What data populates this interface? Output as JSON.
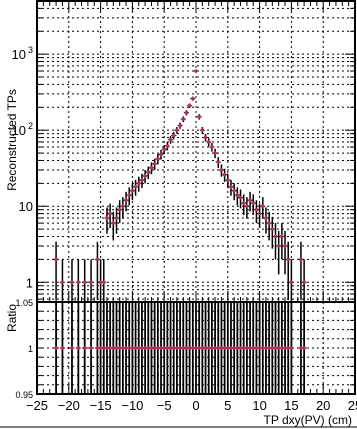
{
  "chart_data": [
    {
      "type": "scatter",
      "title": "",
      "ylabel": "Reconstructed TPs",
      "xlabel": "",
      "y_scale": "log",
      "ylim": [
        0.55,
        5000
      ],
      "xlim": [
        -25,
        25
      ],
      "grid": true,
      "y_tick_labels": [
        "1",
        "10",
        "10",
        "10"
      ],
      "y_tick_exponents": [
        "",
        "",
        "2",
        "3"
      ],
      "series": [
        {
          "color": "#b03060",
          "x": [
            -22,
            -21,
            -19.5,
            -18.5,
            -17.5,
            -16.5,
            -15.5,
            -15,
            -14.5,
            -14,
            -13.5,
            -13,
            -12.5,
            -12,
            -11.5,
            -11,
            -10.5,
            -10,
            -9.5,
            -9,
            -8.5,
            -8,
            -7.5,
            -7,
            -6.5,
            -6,
            -5.5,
            -5,
            -4.5,
            -4,
            -3.5,
            -3,
            -2.5,
            -2,
            -1.5,
            -1,
            -0.5,
            0,
            0.5,
            1,
            1.5,
            2,
            2.5,
            3,
            3.5,
            4,
            4.5,
            5,
            5.5,
            6,
            6.5,
            7,
            7.5,
            8,
            8.5,
            9,
            9.5,
            10,
            10.5,
            11,
            11.5,
            12,
            12.5,
            13,
            13.5,
            14,
            14.5,
            15,
            16.5,
            17
          ],
          "y": [
            2,
            1,
            1,
            1,
            1,
            1,
            2,
            1,
            1,
            7,
            8,
            6,
            7,
            9,
            10,
            12,
            14,
            16,
            18,
            20,
            22,
            25,
            28,
            32,
            36,
            42,
            48,
            56,
            62,
            75,
            85,
            100,
            115,
            140,
            170,
            210,
            260,
            600,
            150,
            100,
            80,
            70,
            60,
            50,
            38,
            30,
            26,
            22,
            18,
            16,
            14,
            13,
            11,
            10,
            12,
            11,
            9,
            8,
            10,
            7,
            6,
            5,
            4,
            3,
            4,
            3,
            2,
            1,
            2,
            1
          ]
        }
      ]
    },
    {
      "type": "scatter",
      "title": "",
      "ylabel": "Ratio",
      "xlabel": "TP dxy(PV) (cm)",
      "ylim": [
        0.95,
        1.05
      ],
      "xlim": [
        -25,
        25
      ],
      "grid": true,
      "y_tick_labels": [
        "0.95",
        "1",
        "1.05"
      ],
      "x_tick_labels": [
        "−25",
        "−20",
        "−15",
        "−10",
        "−5",
        "0",
        "5",
        "10",
        "15",
        "20",
        "25"
      ],
      "series": [
        {
          "color": "#b03060",
          "x": [
            -22,
            -21,
            -19.5,
            -18.5,
            -17.5,
            -16.5,
            -15.5,
            -15,
            -14.5,
            -14,
            -13.5,
            -13,
            -12.5,
            -12,
            -11.5,
            -11,
            -10.5,
            -10,
            -9.5,
            -9,
            -8.5,
            -8,
            -7.5,
            -7,
            -6.5,
            -6,
            -5.5,
            -5,
            -4.5,
            -4,
            -3.5,
            -3,
            -2.5,
            -2,
            -1.5,
            -1,
            -0.5,
            0,
            0.5,
            1,
            1.5,
            2,
            2.5,
            3,
            3.5,
            4,
            4.5,
            5,
            5.5,
            6,
            6.5,
            7,
            7.5,
            8,
            8.5,
            9,
            9.5,
            10,
            10.5,
            11,
            11.5,
            12,
            12.5,
            13,
            13.5,
            14,
            14.5,
            15,
            16.5,
            17
          ],
          "y": [
            1,
            1,
            1,
            1,
            1,
            1,
            1,
            1,
            1,
            1,
            1,
            1,
            1,
            1,
            1,
            1,
            1,
            1,
            1,
            1,
            1,
            1,
            1,
            1,
            1,
            1,
            1,
            1,
            1,
            1,
            1,
            1,
            1,
            1,
            1,
            1,
            1,
            1,
            1,
            1,
            1,
            1,
            1,
            1,
            1,
            1,
            1,
            1,
            1,
            1,
            1,
            1,
            1,
            1,
            1,
            1,
            1,
            1,
            1,
            1,
            1,
            1,
            1,
            1,
            1,
            1,
            1,
            1,
            1,
            1
          ]
        }
      ]
    }
  ]
}
